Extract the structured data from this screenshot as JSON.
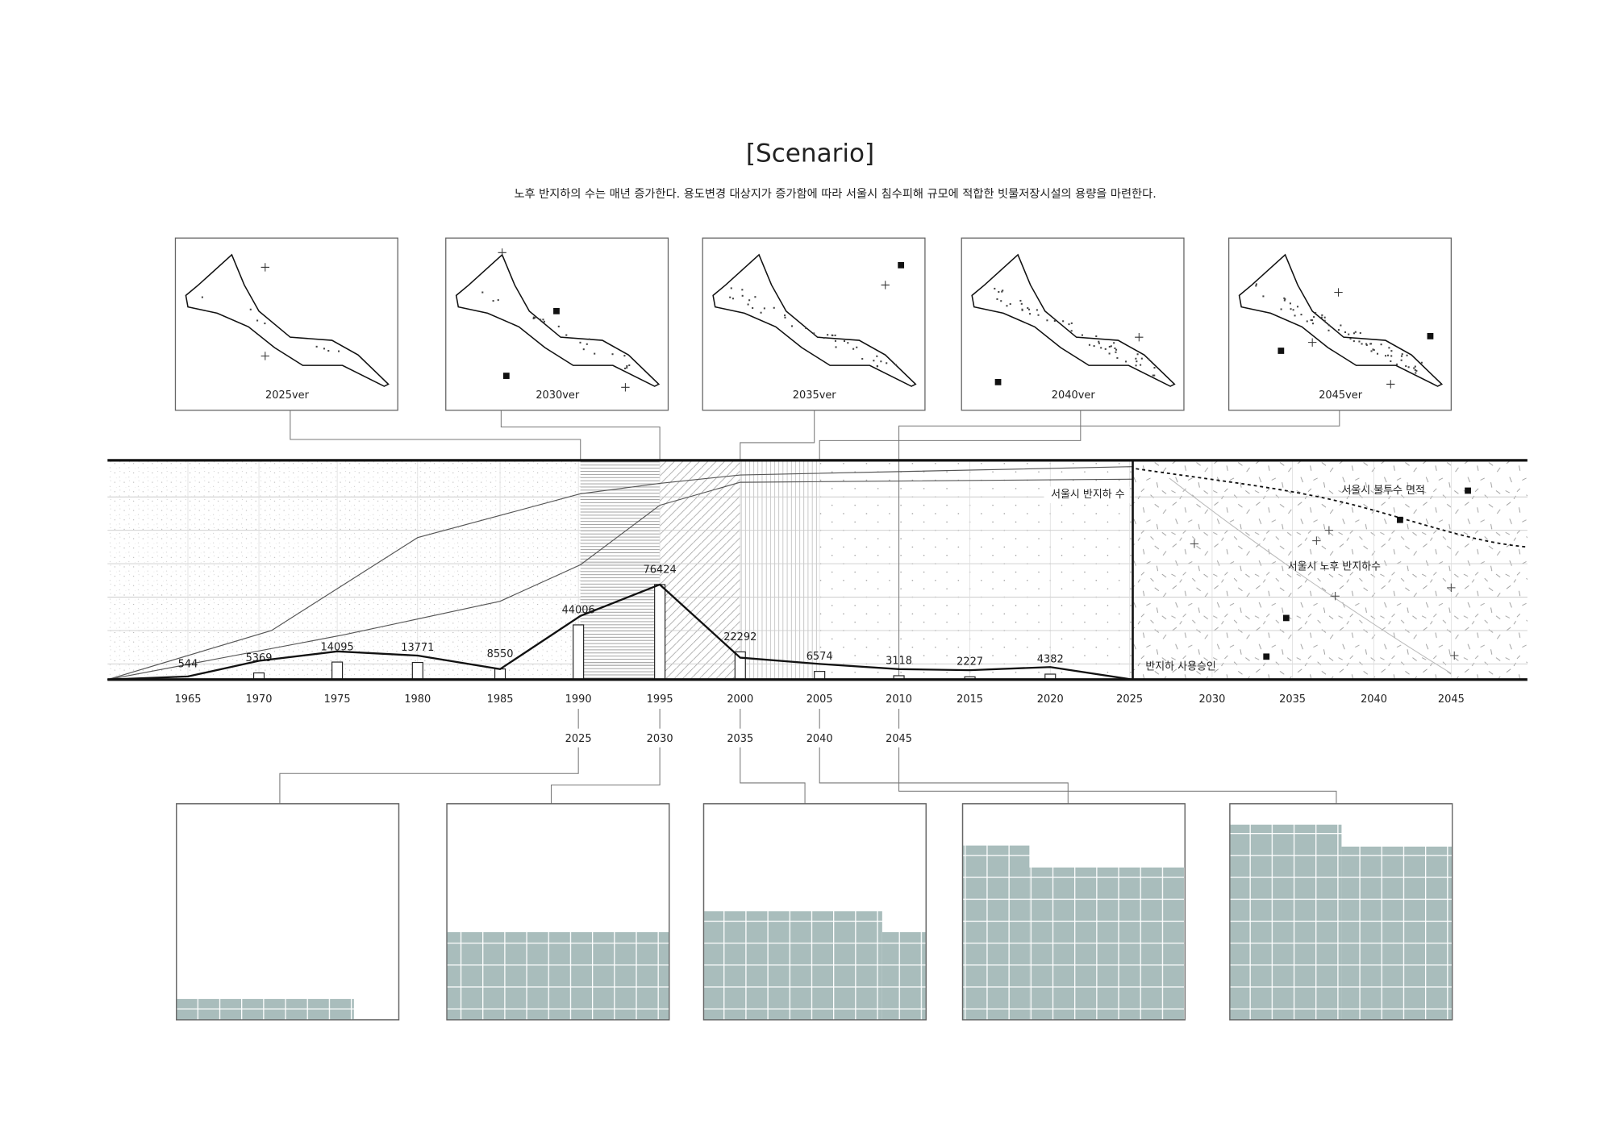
{
  "header": {
    "title": "[Scenario]",
    "subtitle": "노후 반지하의 수는 매년 증가한다. 용도변경 대상지가 증가함에 따라 서울시 침수피해 규모에 적합한 빗물저장시설의 용량을 마련한다."
  },
  "maps": [
    {
      "label": "2025ver"
    },
    {
      "label": "2030ver"
    },
    {
      "label": "2035ver"
    },
    {
      "label": "2040ver"
    },
    {
      "label": "2045ver"
    }
  ],
  "timeline": {
    "axis_years": [
      1965,
      1970,
      1975,
      1980,
      1985,
      1990,
      1995,
      2000,
      2005,
      2010,
      2015,
      2020,
      2025,
      2030,
      2035,
      2040,
      2045
    ],
    "bars": {
      "values": [
        544,
        5369,
        14095,
        13771,
        8550,
        44006,
        76424,
        22292,
        6574,
        3118,
        2227,
        4382
      ]
    },
    "scenario_years": [
      2025,
      2030,
      2035,
      2040,
      2045
    ],
    "labels": {
      "semi_basement_count": "서울시 반지하 수",
      "impervious_area": "서울시 불투수 면적",
      "old_semi_basement": "서울시 노후 반지하수",
      "approval": "반지하 사용승인"
    }
  }
}
